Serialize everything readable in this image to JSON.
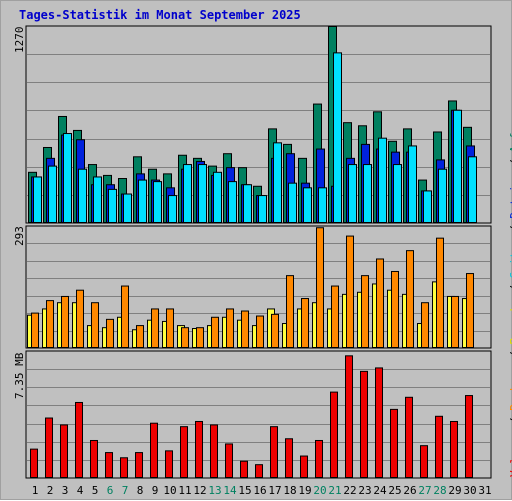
{
  "title": "Tages-Statistik im Monat September 2025",
  "colors": {
    "anfragen": "#008060",
    "dateien": "#0022dd",
    "seiten": "#00e0ff",
    "besuche": "#ffff40",
    "rechner": "#ff8800",
    "volumen": "#ee0000",
    "weekend_day_label": "#008060",
    "background": "#c0c0c0",
    "title": "#0000cc"
  },
  "right_legend": [
    {
      "text": "Volumen",
      "color": "#ee0000"
    },
    {
      "text": " / ",
      "color": "#000000"
    },
    {
      "text": "Rechner",
      "color": "#ff8800"
    },
    {
      "text": " / ",
      "color": "#000000"
    },
    {
      "text": "Besuche",
      "color": "#dddd00"
    },
    {
      "text": " / ",
      "color": "#000000"
    },
    {
      "text": "Seiten",
      "color": "#00c8e0"
    },
    {
      "text": " / ",
      "color": "#000000"
    },
    {
      "text": "Dateien",
      "color": "#0022dd"
    },
    {
      "text": " / ",
      "color": "#000000"
    },
    {
      "text": "Anfragen",
      "color": "#008060"
    }
  ],
  "chart_data": [
    {
      "type": "bar",
      "panel": "requests",
      "max_label": "1270",
      "ylim": [
        0,
        1270
      ],
      "categories": [
        "1",
        "2",
        "3",
        "4",
        "5",
        "6",
        "7",
        "8",
        "9",
        "10",
        "11",
        "12",
        "13",
        "14",
        "15",
        "16",
        "17",
        "18",
        "19",
        "20",
        "21",
        "22",
        "23",
        "24",
        "25",
        "26",
        "27",
        "28",
        "29",
        "30",
        "31"
      ],
      "weekend": [
        "6",
        "7",
        "13",
        "14",
        "20",
        "21",
        "27",
        "28"
      ],
      "series": [
        {
          "name": "Anfragen",
          "values": [
            330,
            490,
            690,
            600,
            380,
            310,
            290,
            430,
            350,
            320,
            440,
            420,
            370,
            450,
            360,
            240,
            610,
            510,
            420,
            770,
            1270,
            650,
            630,
            720,
            530,
            610,
            280,
            590,
            790,
            620,
            0
          ]
        },
        {
          "name": "Dateien",
          "values": [
            300,
            420,
            570,
            540,
            250,
            250,
            190,
            320,
            280,
            230,
            350,
            400,
            310,
            360,
            250,
            180,
            420,
            450,
            260,
            480,
            240,
            420,
            510,
            480,
            460,
            460,
            210,
            410,
            730,
            500,
            0
          ]
        },
        {
          "name": "Seiten",
          "values": [
            300,
            370,
            580,
            350,
            300,
            220,
            190,
            280,
            270,
            180,
            380,
            380,
            330,
            270,
            250,
            180,
            520,
            260,
            230,
            230,
            1100,
            380,
            380,
            550,
            380,
            500,
            210,
            350,
            730,
            430,
            0
          ]
        }
      ]
    },
    {
      "type": "bar",
      "panel": "visits",
      "max_label": "293",
      "ylim": [
        0,
        293
      ],
      "categories": [
        "1",
        "2",
        "3",
        "4",
        "5",
        "6",
        "7",
        "8",
        "9",
        "10",
        "11",
        "12",
        "13",
        "14",
        "15",
        "16",
        "17",
        "18",
        "19",
        "20",
        "21",
        "22",
        "23",
        "24",
        "25",
        "26",
        "27",
        "28",
        "29",
        "30",
        "31"
      ],
      "series": [
        {
          "name": "Besuche",
          "values": [
            80,
            95,
            110,
            110,
            55,
            50,
            75,
            45,
            68,
            65,
            55,
            48,
            55,
            75,
            68,
            55,
            95,
            60,
            95,
            110,
            95,
            130,
            135,
            155,
            140,
            130,
            60,
            160,
            125,
            120,
            0
          ]
        },
        {
          "name": "Rechner",
          "values": [
            85,
            115,
            125,
            140,
            110,
            70,
            150,
            55,
            95,
            95,
            50,
            50,
            75,
            95,
            90,
            78,
            82,
            175,
            120,
            290,
            150,
            270,
            175,
            215,
            185,
            235,
            110,
            265,
            125,
            180,
            0
          ]
        }
      ]
    },
    {
      "type": "bar",
      "panel": "volume",
      "max_label": "7.35 MB",
      "ylim": [
        0,
        7.35
      ],
      "ylabel": "MB",
      "categories": [
        "1",
        "2",
        "3",
        "4",
        "5",
        "6",
        "7",
        "8",
        "9",
        "10",
        "11",
        "12",
        "13",
        "14",
        "15",
        "16",
        "17",
        "18",
        "19",
        "20",
        "21",
        "22",
        "23",
        "24",
        "25",
        "26",
        "27",
        "28",
        "29",
        "30",
        "31"
      ],
      "series": [
        {
          "name": "Volumen",
          "values": [
            1.7,
            3.5,
            3.1,
            4.4,
            2.2,
            1.5,
            1.2,
            1.5,
            3.2,
            1.6,
            3.0,
            3.3,
            3.1,
            2.0,
            1.0,
            0.8,
            3.0,
            2.3,
            1.3,
            2.2,
            5.0,
            7.1,
            6.2,
            6.4,
            4.0,
            4.7,
            1.9,
            3.6,
            3.3,
            4.8,
            0
          ]
        }
      ]
    }
  ]
}
